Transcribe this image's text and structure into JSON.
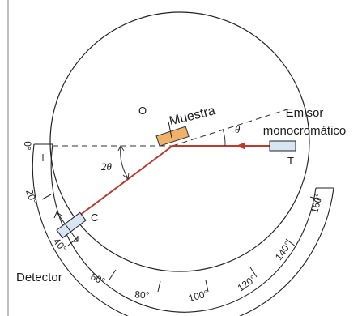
{
  "labels": {
    "emisor_line1": "Emisor",
    "emisor_line2": "monocromático",
    "muestra": "Muestra",
    "detector": "Detector",
    "point_o": "O",
    "point_t": "T",
    "point_c": "C",
    "theta": "θ",
    "two_theta": "2θ"
  },
  "scale": {
    "ticks": [
      "0°",
      "20°",
      "40°",
      "60°",
      "80°",
      "100°",
      "120°",
      "140°",
      "160°"
    ]
  },
  "colors": {
    "beam": "#c0392b",
    "sample": "#f0b26a",
    "component": "#d7e6f2",
    "circle": "#222222",
    "dashed": "#333333"
  }
}
